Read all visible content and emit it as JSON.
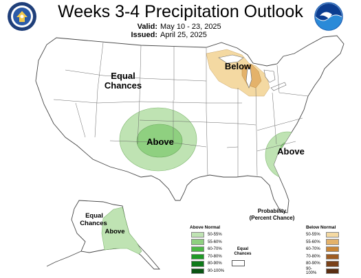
{
  "header": {
    "title": "Weeks 3-4 Precipitation Outlook",
    "valid_label": "Valid:",
    "valid_value": "May 10 - 23, 2025",
    "issued_label": "Issued:",
    "issued_value": "April 25, 2025"
  },
  "logos": {
    "left": {
      "icon": "commerce-seal-icon",
      "color": "#1f3f7a"
    },
    "right": {
      "icon": "noaa-logo-icon",
      "color": "#1a5fb4"
    }
  },
  "map_labels": {
    "equal_chances_conus_1": "Equal",
    "equal_chances_conus_2": "Chances",
    "above_central": "Above",
    "below_great_lakes": "Below",
    "above_southeast": "Above",
    "equal_chances_alaska_1": "Equal",
    "equal_chances_alaska_2": "Chances",
    "above_alaska": "Above"
  },
  "legend": {
    "title_line1": "Probability",
    "title_line2": "(Percent Chance)",
    "above_header": "Above Normal",
    "below_header": "Below Normal",
    "equal_line1": "Equal",
    "equal_line2": "Chances",
    "above": [
      {
        "label": "50-55%",
        "color": "#bfe3b3"
      },
      {
        "label": "55-60%",
        "color": "#8fd080"
      },
      {
        "label": "60-70%",
        "color": "#4cb845"
      },
      {
        "label": "70-80%",
        "color": "#1f9a26"
      },
      {
        "label": "80-90%",
        "color": "#0f7a1a"
      },
      {
        "label": "90-100%",
        "color": "#0b5414"
      }
    ],
    "below": [
      {
        "label": "50-55%",
        "color": "#f4d9a2"
      },
      {
        "label": "55-60%",
        "color": "#e4b26a"
      },
      {
        "label": "60-70%",
        "color": "#c98536"
      },
      {
        "label": "70-80%",
        "color": "#9e5c22"
      },
      {
        "label": "80-90%",
        "color": "#7a4119"
      },
      {
        "label": "90-100%",
        "color": "#5a2e12"
      }
    ]
  }
}
